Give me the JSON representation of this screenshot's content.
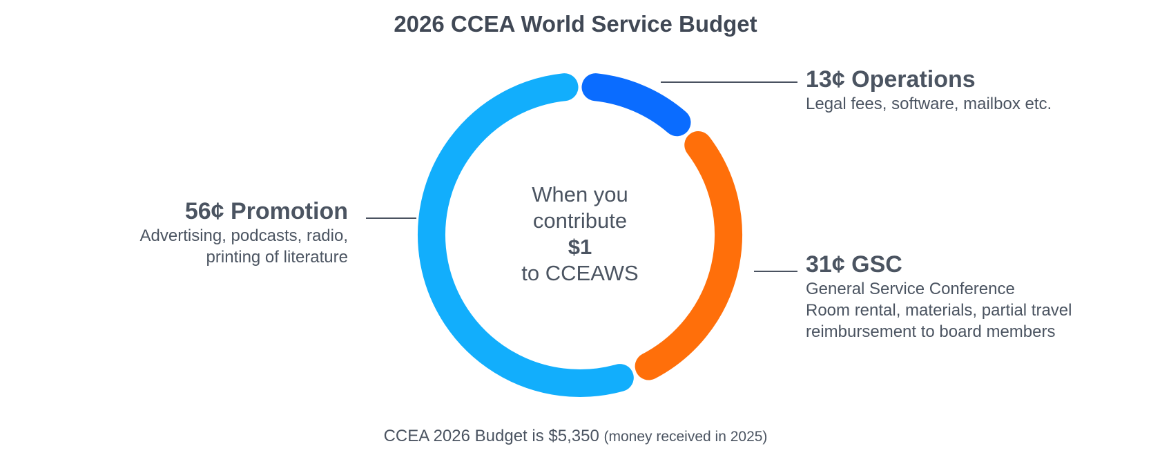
{
  "chart_data": {
    "type": "pie",
    "title": "2026 CCEA World Service Budget",
    "slices": [
      {
        "label": "Operations",
        "value": 13,
        "display": "13¢ Operations",
        "description": [
          "Legal fees, software, mailbox etc."
        ],
        "color": "#0a6cff"
      },
      {
        "label": "GSC",
        "value": 31,
        "display": "31¢ GSC",
        "description": [
          "General Service Conference",
          "Room rental, materials, partial travel",
          "reimbursement to board members"
        ],
        "color": "#ff6f0a"
      },
      {
        "label": "Promotion",
        "value": 56,
        "display": "56¢ Promotion",
        "description": [
          "Advertising, podcasts, radio,",
          "printing of literature"
        ],
        "color": "#12aefc"
      }
    ],
    "center": {
      "line1": "When you",
      "line2": "contribute",
      "amount": "$1",
      "line3": "to CCEAWS"
    },
    "footer": {
      "text": "CCEA 2026 Budget is $5,350",
      "note": "(money received in 2025)"
    },
    "leader_line_color": "#4a5260"
  }
}
